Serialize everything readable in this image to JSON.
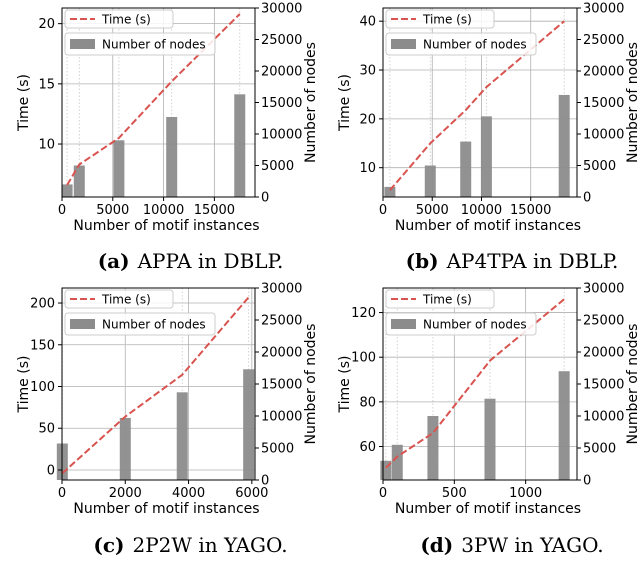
{
  "chart_data": [
    {
      "type": "bar+line",
      "caption_tag": "(a)",
      "caption_text": "APPA in DBLP.",
      "xlabel": "Number of motif instances",
      "ylabel": "Time (s)",
      "y2label": "Number of nodes",
      "xlim": [
        0,
        19000
      ],
      "ylim": [
        5.6,
        21.3
      ],
      "y2lim": [
        0,
        30000
      ],
      "xticks": [
        0,
        5000,
        10000,
        15000
      ],
      "yticks": [
        10,
        15,
        20
      ],
      "y2ticks": [
        0,
        5000,
        10000,
        15000,
        20000,
        25000,
        30000
      ],
      "legend_position": "top-left",
      "series": [
        {
          "name": "Time (s)",
          "kind": "line",
          "style": "dashed",
          "color": "#d9534f",
          "x": [
            500,
            1700,
            5600,
            10800,
            17500
          ],
          "y": [
            6.6,
            8.3,
            10.5,
            15.2,
            20.8
          ]
        },
        {
          "name": "Number of nodes",
          "kind": "bar",
          "color": "#8c8c8c",
          "x": [
            500,
            1700,
            5600,
            10800,
            17500
          ],
          "y": [
            2000,
            5000,
            9000,
            12700,
            16300
          ]
        }
      ]
    },
    {
      "type": "bar+line",
      "caption_tag": "(b)",
      "caption_text": "AP4TPA in DBLP.",
      "xlabel": "Number of motif instances",
      "ylabel": "Time (s)",
      "y2label": "Number of nodes",
      "xlim": [
        0,
        19700
      ],
      "ylim": [
        4.0,
        42.7
      ],
      "y2lim": [
        0,
        30000
      ],
      "xticks": [
        0,
        5000,
        10000,
        15000
      ],
      "yticks": [
        10,
        20,
        30,
        40
      ],
      "y2ticks": [
        0,
        5000,
        10000,
        15000,
        20000,
        25000,
        30000
      ],
      "legend_position": "top-left",
      "series": [
        {
          "name": "Time (s)",
          "kind": "line",
          "style": "dashed",
          "color": "#d9534f",
          "x": [
            700,
            4800,
            8400,
            10500,
            18400
          ],
          "y": [
            5.4,
            15.0,
            21.8,
            26.5,
            40.0
          ]
        },
        {
          "name": "Number of nodes",
          "kind": "bar",
          "color": "#8c8c8c",
          "x": [
            700,
            4800,
            8400,
            10500,
            18400
          ],
          "y": [
            1600,
            5000,
            8800,
            12800,
            16200
          ]
        }
      ]
    },
    {
      "type": "bar+line",
      "caption_tag": "(c)",
      "caption_text": "2P2W in YAGO.",
      "xlabel": "Number of motif instances",
      "ylabel": "Time (s)",
      "y2label": "Number of nodes",
      "xlim": [
        0,
        6100
      ],
      "ylim": [
        -12,
        218
      ],
      "y2lim": [
        0,
        30000
      ],
      "xticks": [
        0,
        2000,
        4000,
        6000
      ],
      "yticks": [
        0,
        50,
        100,
        150,
        200
      ],
      "y2ticks": [
        0,
        5000,
        10000,
        15000,
        20000,
        25000,
        30000
      ],
      "legend_position": "top-left",
      "series": [
        {
          "name": "Time (s)",
          "kind": "line",
          "style": "dashed",
          "color": "#d9534f",
          "x": [
            10,
            2000,
            3800,
            5900
          ],
          "y": [
            -4,
            64,
            114,
            207
          ]
        },
        {
          "name": "Number of nodes",
          "kind": "bar",
          "color": "#8c8c8c",
          "x": [
            10,
            2000,
            3800,
            5900
          ],
          "y": [
            5700,
            9700,
            13700,
            17300
          ]
        }
      ]
    },
    {
      "type": "bar+line",
      "caption_tag": "(d)",
      "caption_text": "3PW in YAGO.",
      "xlabel": "Number of motif instances",
      "ylabel": "Time (s)",
      "y2label": "Number of nodes",
      "xlim": [
        0,
        1360
      ],
      "ylim": [
        45,
        131
      ],
      "y2lim": [
        0,
        30000
      ],
      "xticks": [
        0,
        500,
        1000
      ],
      "yticks": [
        60,
        80,
        100,
        120
      ],
      "y2ticks": [
        0,
        5000,
        10000,
        15000,
        20000,
        25000,
        30000
      ],
      "legend_position": "top-left",
      "series": [
        {
          "name": "Time (s)",
          "kind": "line",
          "style": "dashed",
          "color": "#d9534f",
          "x": [
            20,
            100,
            350,
            750,
            1270
          ],
          "y": [
            50.5,
            55.5,
            66,
            98.5,
            126
          ]
        },
        {
          "name": "Number of nodes",
          "kind": "bar",
          "color": "#8c8c8c",
          "x": [
            20,
            100,
            350,
            750,
            1270
          ],
          "y": [
            3000,
            5500,
            10000,
            12700,
            17000
          ]
        }
      ]
    }
  ]
}
